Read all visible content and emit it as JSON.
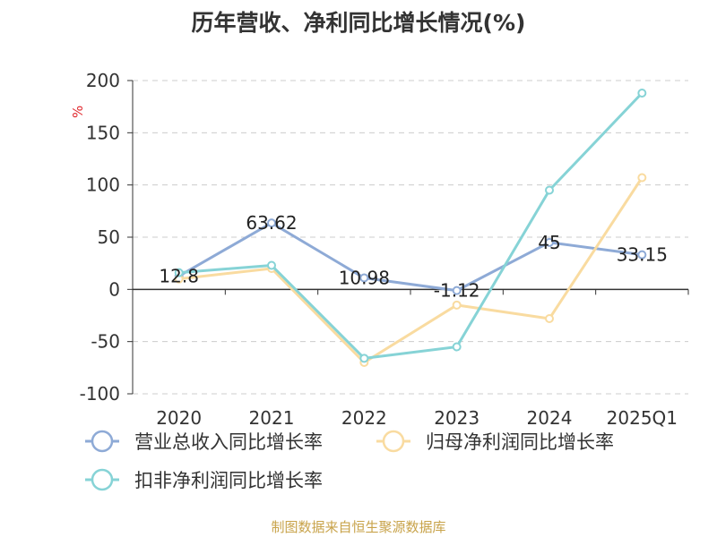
{
  "chart_data": {
    "type": "line",
    "title": "历年营收、净利同比增长情况(%)",
    "ylabel": "%",
    "xlabel": "",
    "categories": [
      "2020",
      "2021",
      "2022",
      "2023",
      "2024",
      "2025Q1"
    ],
    "ylim": [
      -100,
      200
    ],
    "yticks": [
      "200",
      "150",
      "100",
      "50",
      "0",
      "-50",
      "-100"
    ],
    "grid": true,
    "legend_position": "bottom-left",
    "series": [
      {
        "name": "营业总收入同比增长率",
        "color": "#8eaad6",
        "values": [
          12.8,
          63.62,
          10.98,
          -1.12,
          45,
          33.15
        ],
        "labels": [
          "12.8",
          "63.62",
          "10.98",
          "-1.12",
          "45",
          "33.15"
        ]
      },
      {
        "name": "归母净利润同比增长率",
        "color": "#f9dba0",
        "values": [
          10,
          20,
          -70,
          -15,
          -28,
          107
        ]
      },
      {
        "name": "扣非净利润同比增长率",
        "color": "#86d3d6",
        "values": [
          16,
          23,
          -66,
          -55,
          95,
          188
        ]
      }
    ]
  },
  "footer": {
    "source": "制图数据来自恒生聚源数据库"
  }
}
